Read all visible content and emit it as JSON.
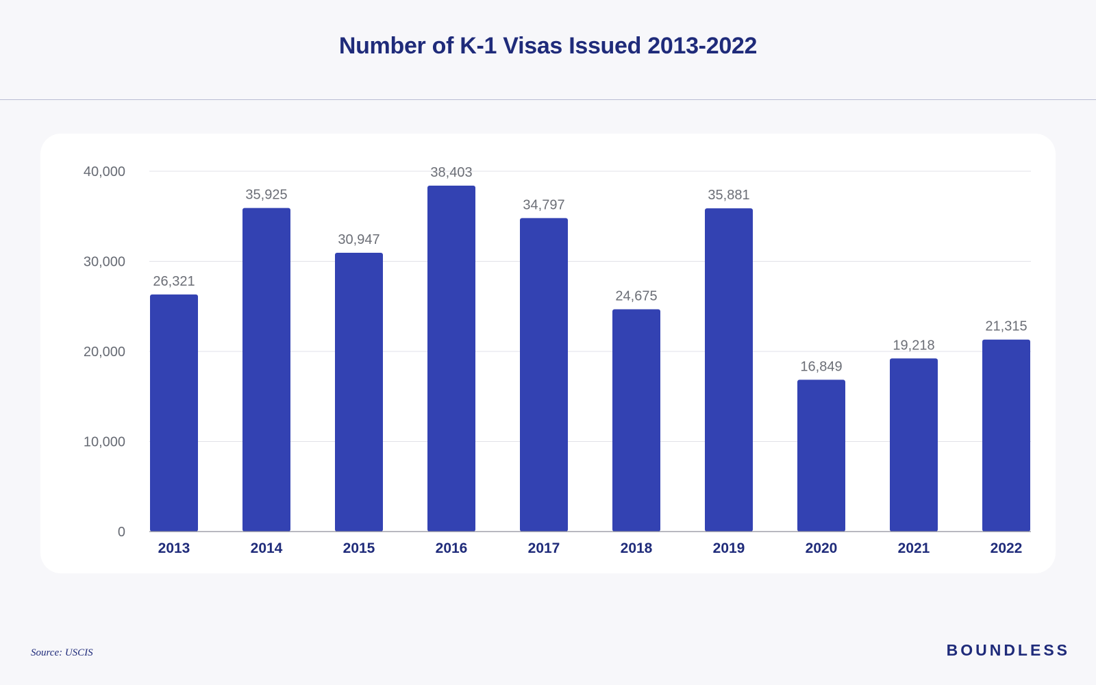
{
  "colors": {
    "bar": "#3342b2",
    "title": "#1f2b7a",
    "grid": "#e2e2e8",
    "axis_line": "#8d8d99",
    "tick_text": "#666a73",
    "value_text": "#6b6e76",
    "category_text": "#1f2b7a",
    "background": "#f7f7fa",
    "card": "#ffffff"
  },
  "chart_data": {
    "type": "bar",
    "title": "Number of K-1 Visas Issued 2013-2022",
    "categories": [
      "2013",
      "2014",
      "2015",
      "2016",
      "2017",
      "2018",
      "2019",
      "2020",
      "2021",
      "2022"
    ],
    "values": [
      26321,
      35925,
      30947,
      38403,
      34797,
      24675,
      35881,
      16849,
      19218,
      21315
    ],
    "value_labels": [
      "26,321",
      "35,925",
      "30,947",
      "38,403",
      "34,797",
      "24,675",
      "35,881",
      "16,849",
      "19,218",
      "21,315"
    ],
    "ylim": [
      0,
      40000
    ],
    "yticks": [
      0,
      10000,
      20000,
      30000,
      40000
    ],
    "ytick_labels": [
      "0",
      "10,000",
      "20,000",
      "30,000",
      "40,000"
    ],
    "xlabel": "",
    "ylabel": "",
    "grid": true,
    "legend": "none"
  },
  "footer": {
    "source": "Source: USCIS",
    "brand": "BOUNDLESS"
  }
}
